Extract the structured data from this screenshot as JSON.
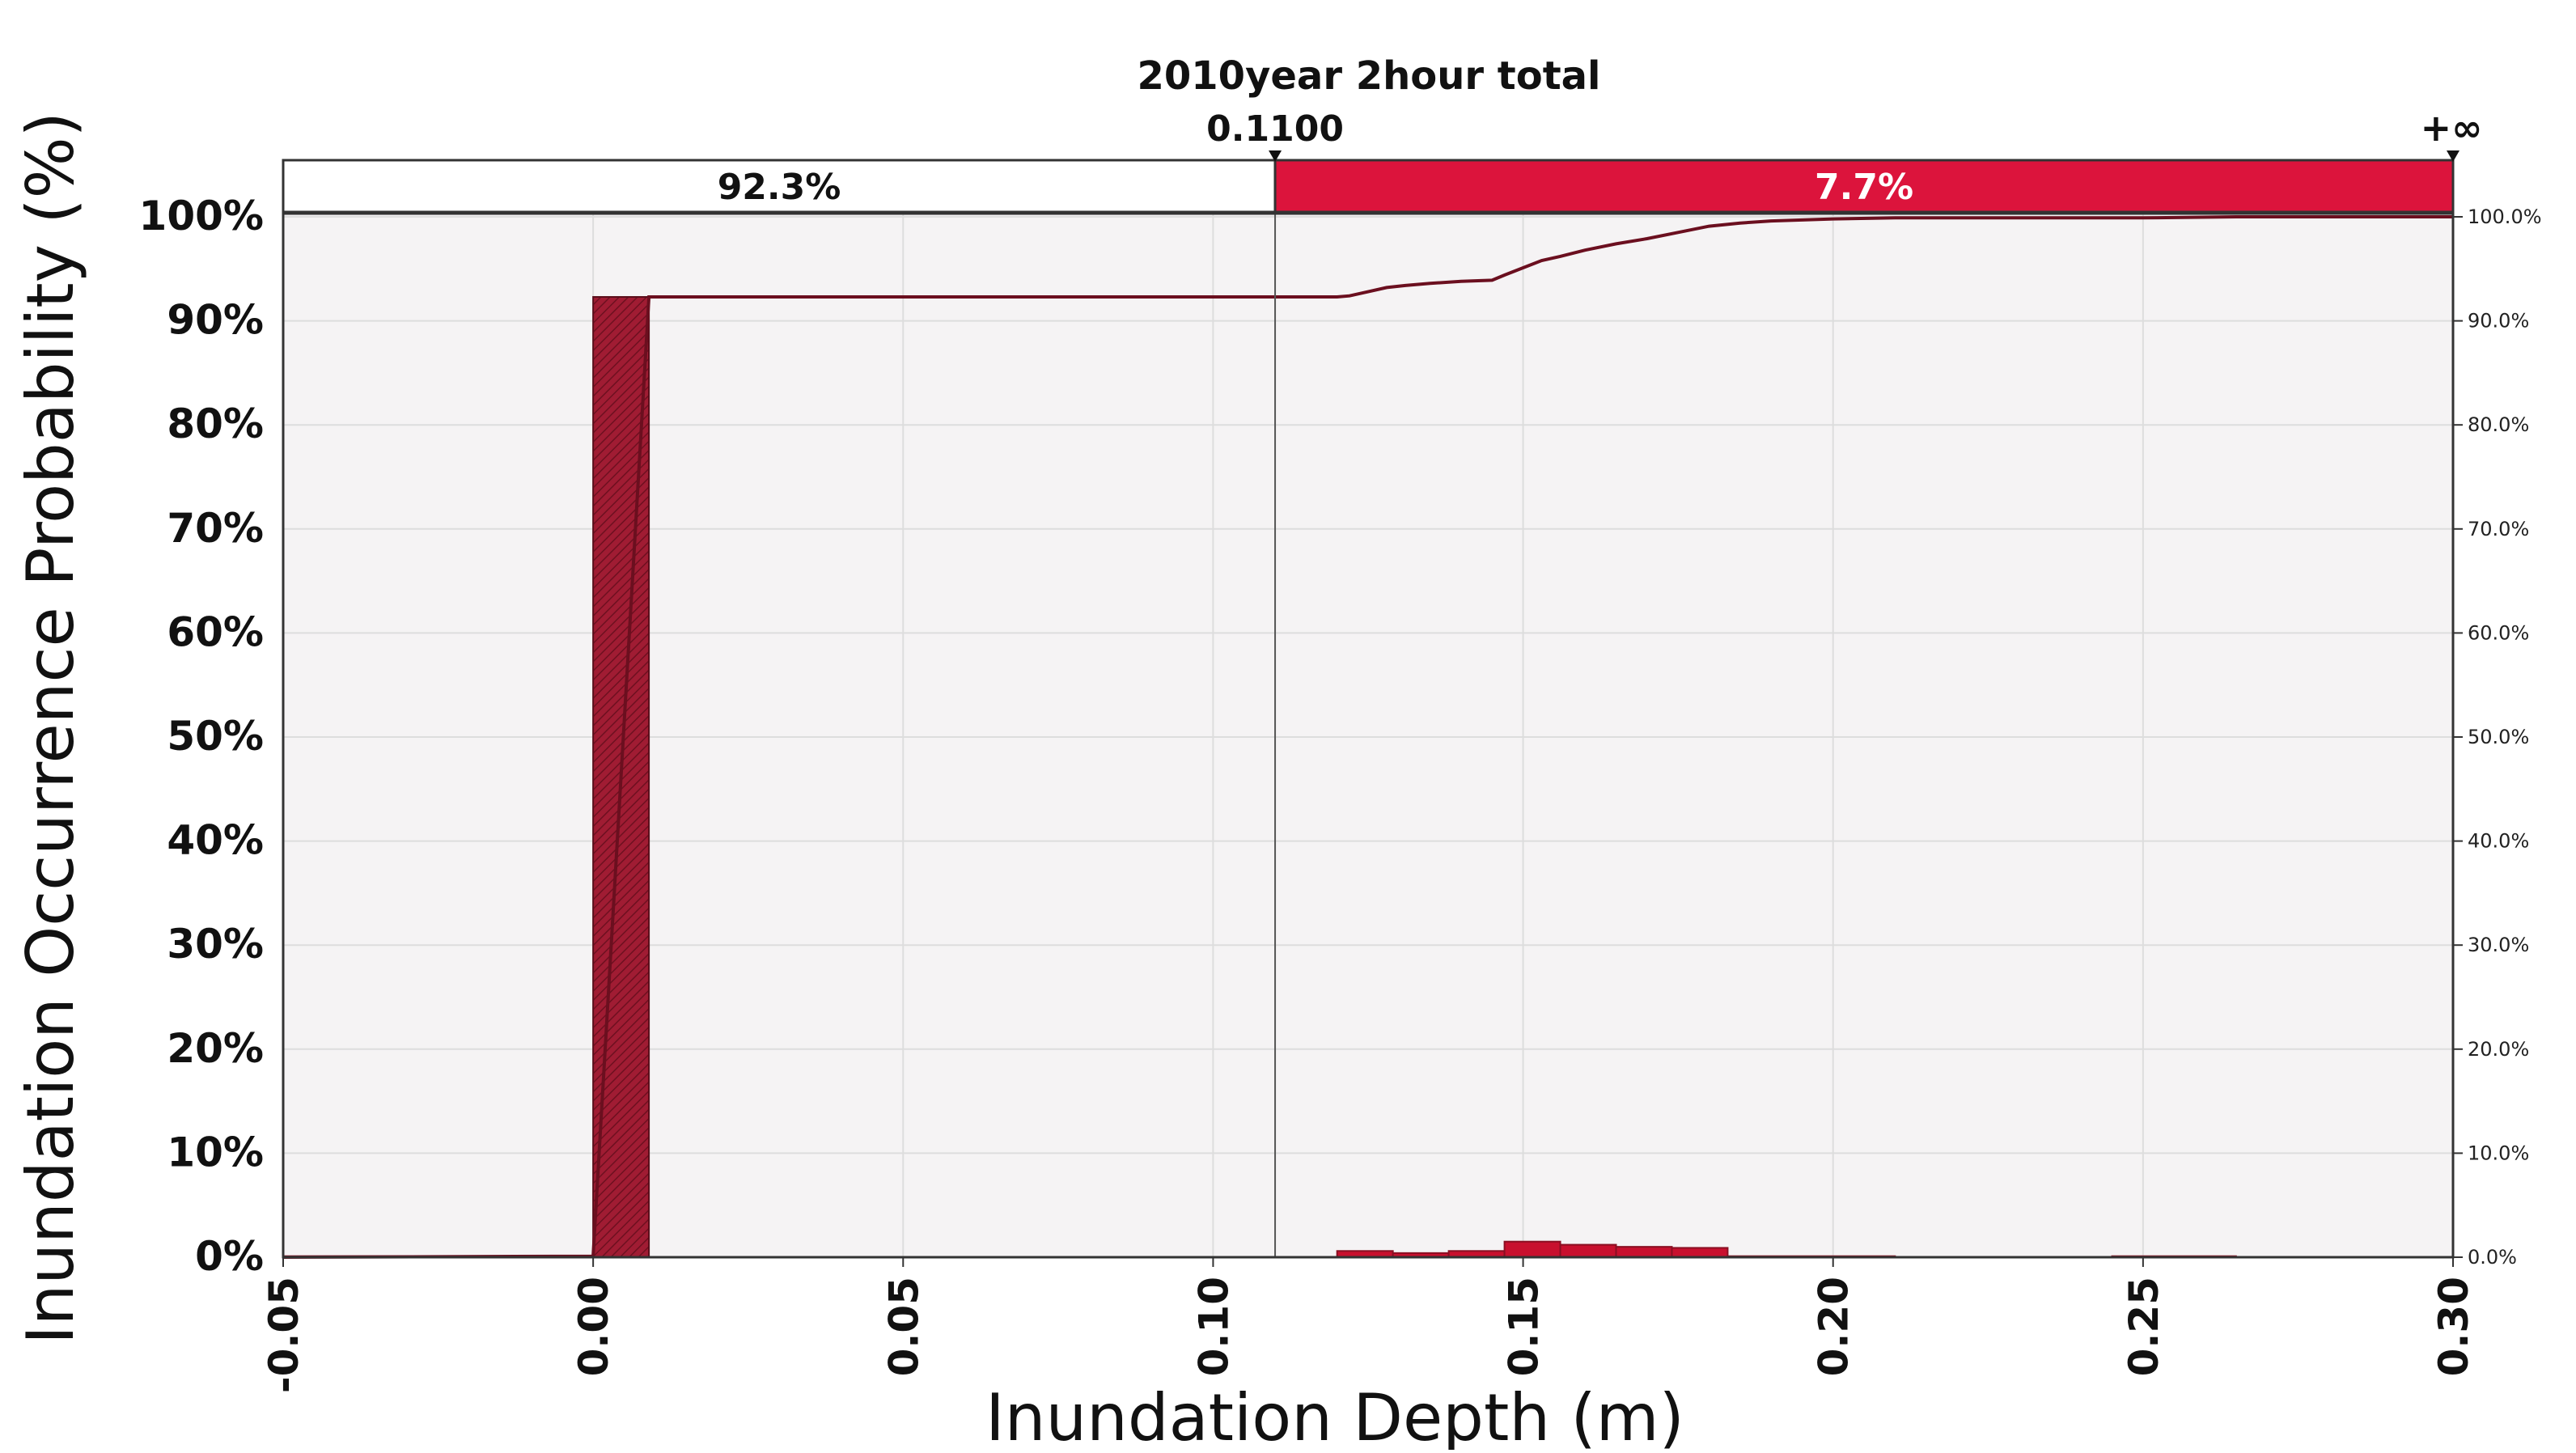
{
  "chart_data": {
    "type": "bar",
    "title": "2010year 2hour total",
    "xlabel": "Inundation Depth (m)",
    "ylabel": "Inundation Occurrence Probability (%)",
    "xlim": [
      -0.05,
      0.3
    ],
    "ylim": [
      0,
      100
    ],
    "x_ticks": [
      "-0.05",
      "0.00",
      "0.05",
      "0.10",
      "0.15",
      "0.20",
      "0.25",
      "0.30"
    ],
    "x_tick_values": [
      -0.05,
      0.0,
      0.05,
      0.1,
      0.15,
      0.2,
      0.25,
      0.3
    ],
    "y_ticks_left": [
      "0%",
      "10%",
      "20%",
      "30%",
      "40%",
      "50%",
      "60%",
      "70%",
      "80%",
      "90%",
      "100%"
    ],
    "y_ticks_right": [
      "0.0%",
      "10.0%",
      "20.0%",
      "30.0%",
      "40.0%",
      "50.0%",
      "60.0%",
      "70.0%",
      "80.0%",
      "90.0%",
      "100.0%"
    ],
    "y_tick_values": [
      0,
      10,
      20,
      30,
      40,
      50,
      60,
      70,
      80,
      90,
      100
    ],
    "grid": true,
    "threshold": {
      "value": 0.11,
      "label": "0.1100",
      "upper_label": "+∞",
      "left_percent": 92.3,
      "left_label": "92.3%",
      "right_percent": 7.7,
      "right_label": "7.7%"
    },
    "histogram": {
      "bins": [
        {
          "start": -0.05,
          "end": 0.0,
          "value": 0.1
        },
        {
          "start": 0.0,
          "end": 0.009,
          "value": 92.3
        },
        {
          "start": 0.12,
          "end": 0.129,
          "value": 0.6
        },
        {
          "start": 0.129,
          "end": 0.138,
          "value": 0.4
        },
        {
          "start": 0.138,
          "end": 0.147,
          "value": 0.6
        },
        {
          "start": 0.147,
          "end": 0.156,
          "value": 1.5
        },
        {
          "start": 0.156,
          "end": 0.165,
          "value": 1.2
        },
        {
          "start": 0.165,
          "end": 0.174,
          "value": 1.0
        },
        {
          "start": 0.174,
          "end": 0.183,
          "value": 0.9
        },
        {
          "start": 0.183,
          "end": 0.21,
          "value": 0.1
        },
        {
          "start": 0.245,
          "end": 0.265,
          "value": 0.1
        }
      ]
    },
    "cumulative": {
      "x": [
        -0.05,
        0.0,
        0.009,
        0.12,
        0.122,
        0.125,
        0.128,
        0.131,
        0.135,
        0.14,
        0.145,
        0.147,
        0.15,
        0.153,
        0.156,
        0.16,
        0.165,
        0.17,
        0.175,
        0.18,
        0.185,
        0.19,
        0.2,
        0.21,
        0.25,
        0.265,
        0.3
      ],
      "y": [
        0.0,
        0.1,
        92.3,
        92.3,
        92.4,
        92.8,
        93.2,
        93.4,
        93.6,
        93.8,
        93.9,
        94.4,
        95.1,
        95.8,
        96.2,
        96.8,
        97.4,
        97.9,
        98.5,
        99.1,
        99.4,
        99.6,
        99.8,
        99.9,
        99.9,
        100.0,
        100.0
      ]
    }
  }
}
